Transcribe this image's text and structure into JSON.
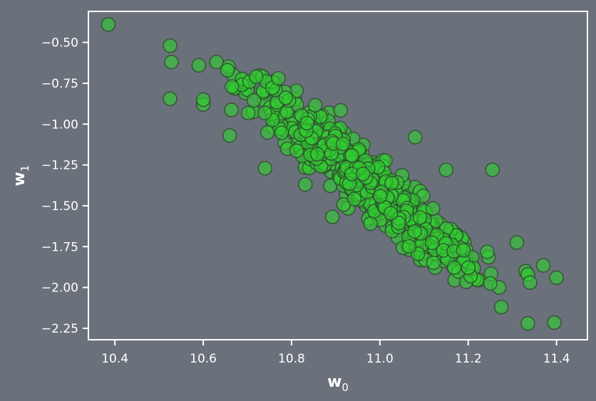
{
  "chart_data": {
    "type": "scatter",
    "xlabel": "w",
    "xlabel_subscript": "0",
    "ylabel": "w",
    "ylabel_subscript": "1",
    "xlim": [
      10.34,
      11.47
    ],
    "ylim": [
      -2.32,
      -0.31
    ],
    "xticks": [
      10.4,
      10.6,
      10.8,
      11.0,
      11.2,
      11.4
    ],
    "xtick_labels": [
      "10.4",
      "10.6",
      "10.8",
      "11.0",
      "11.2",
      "11.4"
    ],
    "yticks": [
      -0.5,
      -0.75,
      -1.0,
      -1.25,
      -1.5,
      -1.75,
      -2.0,
      -2.25
    ],
    "ytick_labels": [
      "−0.50",
      "−0.75",
      "−1.00",
      "−1.25",
      "−1.50",
      "−1.75",
      "−2.00",
      "−2.25"
    ],
    "grid": false,
    "legend": "none",
    "marker_color": "#32cd32",
    "marker_edge_color": "#2f4f2f",
    "background_color": "#6b717b",
    "axes_color": "#ffffff",
    "outliers": {
      "x": [
        10.385,
        10.525,
        10.528,
        10.525,
        10.59,
        10.6,
        10.6,
        10.63,
        10.655,
        10.665,
        10.66,
        10.705,
        10.72,
        10.77,
        10.74,
        11.255,
        11.08,
        11.15,
        11.31,
        11.33,
        11.335,
        11.37,
        11.4,
        11.27,
        11.25,
        11.275,
        11.34,
        11.335,
        11.395
      ],
      "y": [
        -0.39,
        -0.52,
        -0.62,
        -0.845,
        -0.64,
        -0.88,
        -0.85,
        -0.62,
        -0.67,
        -0.77,
        -1.07,
        -0.74,
        -0.71,
        -0.72,
        -1.27,
        -1.28,
        -1.08,
        -1.28,
        -1.725,
        -1.9,
        -1.92,
        -1.865,
        -1.94,
        -2.0,
        -1.975,
        -2.12,
        -1.97,
        -2.22,
        -2.215
      ]
    },
    "cluster_model": {
      "n_points": 620,
      "x_mean": 10.97,
      "x_sd": 0.135,
      "intercept_at_x_mean": -1.36,
      "slope": -2.25,
      "residual_sd": 0.095,
      "x_range": [
        10.62,
        11.33
      ],
      "y_range": [
        -2.0,
        -0.62
      ]
    }
  }
}
